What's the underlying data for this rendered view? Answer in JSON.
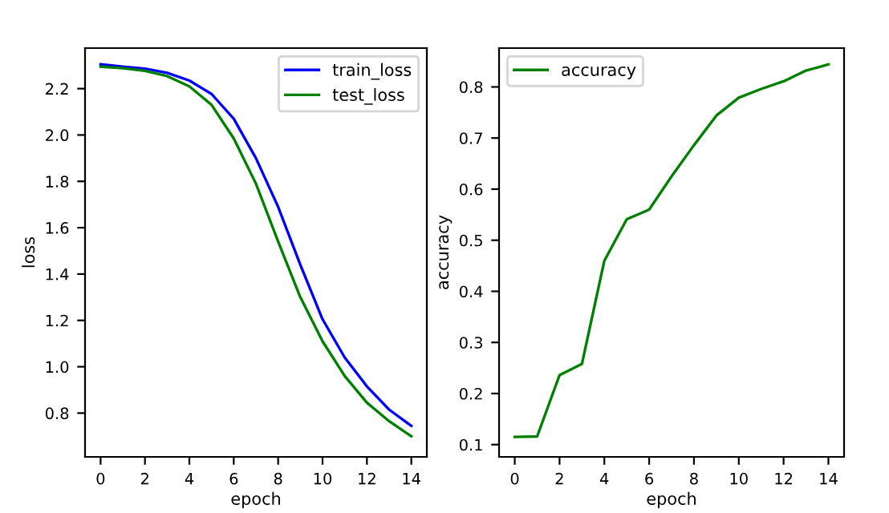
{
  "chart_data": [
    {
      "type": "line",
      "xlabel": "epoch",
      "ylabel": "loss",
      "x": [
        0,
        1,
        2,
        3,
        4,
        5,
        6,
        7,
        8,
        9,
        10,
        11,
        12,
        13,
        14
      ],
      "xlim": [
        -0.7,
        14.7
      ],
      "ylim": [
        0.611,
        2.375
      ],
      "xticks": [
        0,
        2,
        4,
        6,
        8,
        10,
        12,
        14
      ],
      "yticks": [
        0.8,
        {
          "value": 1,
          "label": "1.0"
        },
        1.2,
        1.4,
        1.6,
        1.8,
        {
          "value": 2,
          "label": "2.0"
        },
        2.2
      ],
      "legend": "top right",
      "grid": false,
      "series": [
        {
          "name": "train_loss",
          "color": "#0000ff",
          "values": [
            2.305,
            2.295,
            2.286,
            2.268,
            2.235,
            2.177,
            2.07,
            1.9,
            1.69,
            1.44,
            1.205,
            1.04,
            0.915,
            0.815,
            0.745
          ]
        },
        {
          "name": "test_loss",
          "color": "#008000",
          "values": [
            2.295,
            2.288,
            2.277,
            2.254,
            2.21,
            2.13,
            1.985,
            1.79,
            1.54,
            1.3,
            1.11,
            0.96,
            0.845,
            0.765,
            0.7
          ]
        }
      ]
    },
    {
      "type": "line",
      "xlabel": "epoch",
      "ylabel": "accuracy",
      "x": [
        0,
        1,
        2,
        3,
        4,
        5,
        6,
        7,
        8,
        9,
        10,
        11,
        12,
        13,
        14
      ],
      "xlim": [
        -0.7,
        14.7
      ],
      "ylim": [
        0.076,
        0.876
      ],
      "xticks": [
        0,
        2,
        4,
        6,
        8,
        10,
        12,
        14
      ],
      "yticks": [
        0.1,
        0.2,
        0.3,
        0.4,
        0.5,
        0.6,
        0.7,
        0.8
      ],
      "legend": "top left",
      "grid": false,
      "series": [
        {
          "name": "accuracy",
          "color": "#008000",
          "values": [
            0.115,
            0.116,
            0.236,
            0.258,
            0.46,
            0.541,
            0.56,
            0.625,
            0.686,
            0.744,
            0.779,
            0.796,
            0.811,
            0.832,
            0.844
          ]
        }
      ]
    }
  ]
}
